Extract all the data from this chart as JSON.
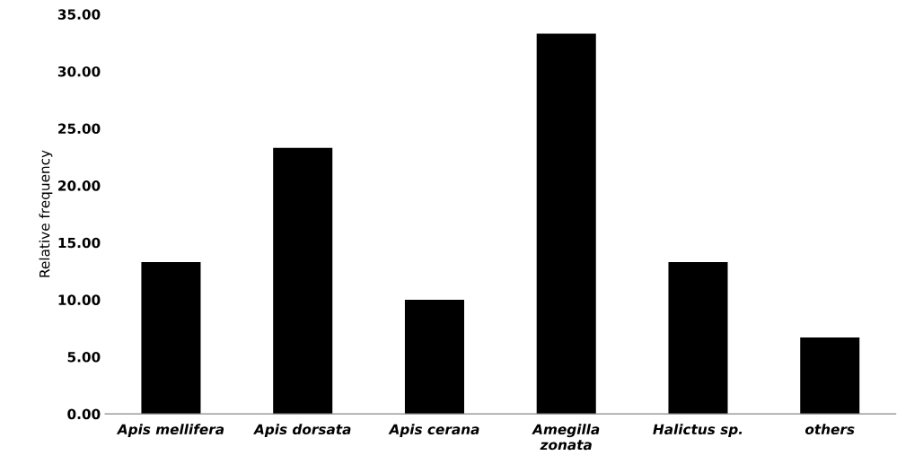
{
  "chart_data": {
    "type": "bar",
    "ylabel": "Relative frequency",
    "categories": [
      "Apis mellifera",
      "Apis dorsata",
      "Apis cerana",
      "Amegilla\nzonata",
      "Halictus sp.",
      "others"
    ],
    "values": [
      13.3,
      23.3,
      10.0,
      33.3,
      13.3,
      6.7
    ],
    "color": "#000000",
    "ylim": [
      0,
      35
    ],
    "yticks": [
      {
        "value": 0,
        "label": "0.00"
      },
      {
        "value": 5,
        "label": "5.00"
      },
      {
        "value": 10,
        "label": "10.00"
      },
      {
        "value": 15,
        "label": "15.00"
      },
      {
        "value": 20,
        "label": "20.00"
      },
      {
        "value": 25,
        "label": "25.00"
      },
      {
        "value": 30,
        "label": "30.00"
      },
      {
        "value": 35,
        "label": "35.00"
      }
    ],
    "grid": false,
    "legend": false
  }
}
